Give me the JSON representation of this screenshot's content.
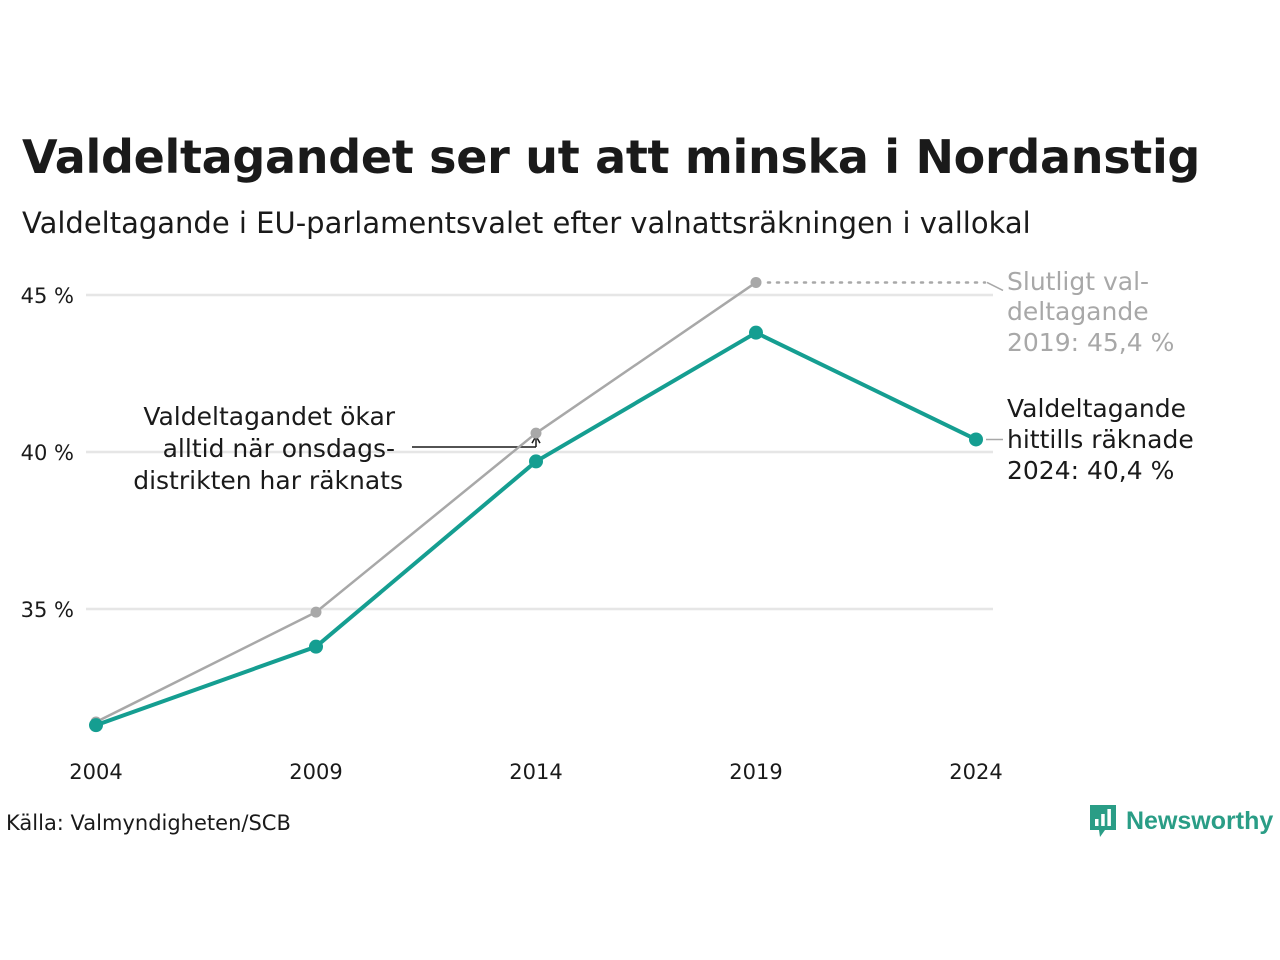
{
  "chart_data": {
    "type": "line",
    "title": "Valdeltagandet ser ut att minska i Nordanstig",
    "subtitle": "Valdeltagande i EU-parlamentsvalet efter valnattsräkningen i vallokal",
    "x": [
      "2004",
      "2009",
      "2014",
      "2019",
      "2024"
    ],
    "yticks": [
      35,
      40,
      45
    ],
    "ytick_labels": [
      "35 %",
      "40 %",
      "45 %"
    ],
    "ylim": [
      30.5,
      46.5
    ],
    "grid": true,
    "series": [
      {
        "name": "Slutligt valdeltagande",
        "color": "#a8a8a8",
        "values": [
          31.4,
          34.9,
          40.6,
          45.4,
          null
        ]
      },
      {
        "name": "Valdeltagande hittills räknade",
        "color": "#159e91",
        "values": [
          31.3,
          33.8,
          39.7,
          43.8,
          40.4
        ]
      }
    ],
    "annotations": {
      "left": [
        "Valdeltagandet ökar",
        "alltid när onsdags-",
        "distrikten har räknats"
      ],
      "final": [
        "Slutligt val-",
        "deltagande",
        "2019: 45,4 %"
      ],
      "current": [
        "Valdeltagande",
        "hittills räknade",
        "2024: 40,4 %"
      ]
    }
  },
  "source": "Källa: Valmyndigheten/SCB",
  "brand": {
    "name": "Newsworthy",
    "icon": "newsworthy-logo-icon",
    "color": "#2a9d86"
  }
}
